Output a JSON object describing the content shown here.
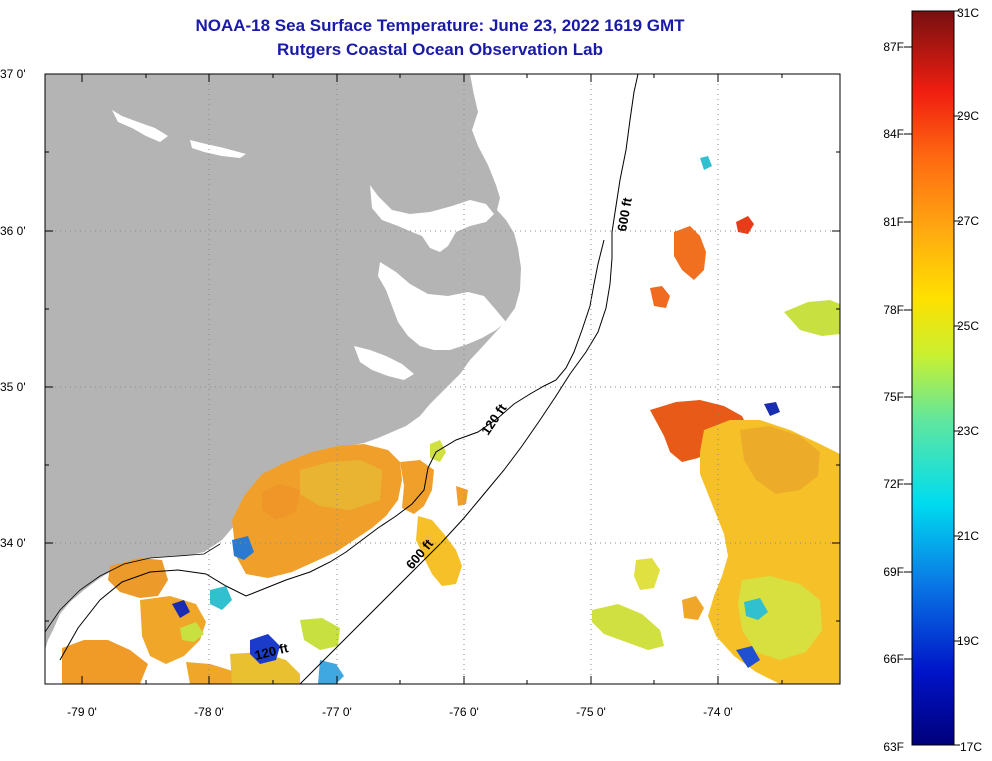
{
  "header": {
    "title": "NOAA-18 Sea Surface Temperature:  June 23, 2022 1619 GMT",
    "subtitle": "Rutgers Coastal Ocean Observation Lab"
  },
  "map": {
    "lat_labels": [
      "37 0'",
      "36 0'",
      "35 0'",
      "34 0'"
    ],
    "lon_labels": [
      "-79 0'",
      "-78 0'",
      "-77 0'",
      "-76 0'",
      "-75 0'",
      "-74 0'"
    ],
    "contour_labels": {
      "c600_north": "600 ft",
      "c120": "120 ft",
      "c600_south": "600 ft",
      "c120_south": "120 ft"
    },
    "land_color": "#b4b4b4"
  },
  "colorbar": {
    "f_labels": [
      "87F",
      "84F",
      "81F",
      "78F",
      "75F",
      "72F",
      "69F",
      "66F",
      "63F"
    ],
    "c_labels": [
      "31C",
      "29C",
      "27C",
      "25C",
      "23C",
      "21C",
      "19C",
      "17C"
    ],
    "range_c": [
      17,
      31
    ],
    "range_f": [
      63,
      88
    ]
  }
}
